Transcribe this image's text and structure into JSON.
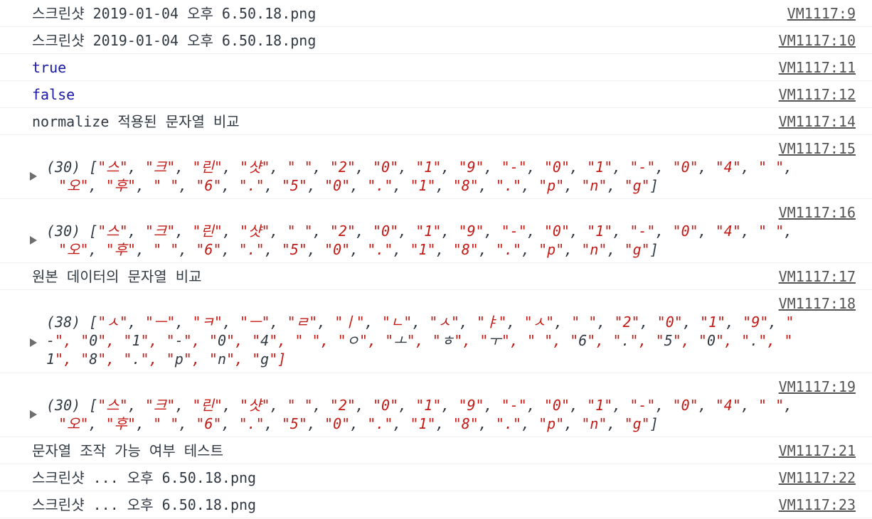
{
  "rows": [
    {
      "type": "log",
      "text": "스크린샷 2019-01-04 오후 6.50.18.png",
      "source": "VM1117:9"
    },
    {
      "type": "log",
      "text": "스크린샷 2019-01-04 오후 6.50.18.png",
      "source": "VM1117:10"
    },
    {
      "type": "bool",
      "text": "true",
      "source": "VM1117:11"
    },
    {
      "type": "bool",
      "text": "false",
      "source": "VM1117:12"
    },
    {
      "type": "log",
      "text": "normalize 적용된 문자열 비교",
      "source": "VM1117:14"
    },
    {
      "type": "array",
      "count": "(30)",
      "source": "VM1117:15",
      "lines": [
        [
          "스",
          "크",
          "린",
          "샷",
          " ",
          "2",
          "0",
          "1",
          "9",
          "-",
          "0",
          "1",
          "-",
          "0",
          "4",
          " "
        ],
        [
          "오",
          "후",
          " ",
          "6",
          ".",
          "5",
          "0",
          ".",
          "1",
          "8",
          ".",
          "p",
          "n",
          "g"
        ]
      ]
    },
    {
      "type": "array",
      "count": "(30)",
      "source": "VM1117:16",
      "lines": [
        [
          "스",
          "크",
          "린",
          "샷",
          " ",
          "2",
          "0",
          "1",
          "9",
          "-",
          "0",
          "1",
          "-",
          "0",
          "4",
          " "
        ],
        [
          "오",
          "후",
          " ",
          "6",
          ".",
          "5",
          "0",
          ".",
          "1",
          "8",
          ".",
          "p",
          "n",
          "g"
        ]
      ]
    },
    {
      "type": "log",
      "text": "원본 데이터의 문자열 비교",
      "source": "VM1117:17"
    },
    {
      "type": "array",
      "count": "(38)",
      "source": "VM1117:18",
      "raw_lines": [
        "[\"ㅅ\", \"ㅡ\", \"ㅋ\", \"ㅡ\", \"ㄹ\", \"ㅣ\", \"ㄴ\", \"ㅅ\", \"ㅑ\", \"ㅅ\", \" \", \"2\", \"0\", \"1\", \"9\", \"",
        "-\", \"0\", \"1\", \"-\", \"0\", \"4\", \" \", \"ㅇ\", \"ㅗ\", \"ㅎ\", \"ㅜ\", \" \", \"6\", \".\", \"5\", \"0\", \".\", \"",
        "1\", \"8\", \".\", \"p\", \"n\", \"g\"]"
      ]
    },
    {
      "type": "array",
      "count": "(30)",
      "source": "VM1117:19",
      "lines": [
        [
          "스",
          "크",
          "린",
          "샷",
          " ",
          "2",
          "0",
          "1",
          "9",
          "-",
          "0",
          "1",
          "-",
          "0",
          "4",
          " "
        ],
        [
          "오",
          "후",
          " ",
          "6",
          ".",
          "5",
          "0",
          ".",
          "1",
          "8",
          ".",
          "p",
          "n",
          "g"
        ]
      ]
    },
    {
      "type": "log",
      "text": "문자열 조작 가능 여부 테스트",
      "source": "VM1117:21"
    },
    {
      "type": "log",
      "text": "스크린샷 ... 오후 6.50.18.png",
      "source": "VM1117:22"
    },
    {
      "type": "log",
      "text": "스크린샷 ... 오후 6.50.18.png",
      "source": "VM1117:23"
    }
  ],
  "icons": {
    "expand": "disclosure-triangle-right"
  },
  "colors": {
    "string": "#c41a16",
    "boolean": "#1a1aa6",
    "link": "#545454",
    "text": "#303942"
  }
}
